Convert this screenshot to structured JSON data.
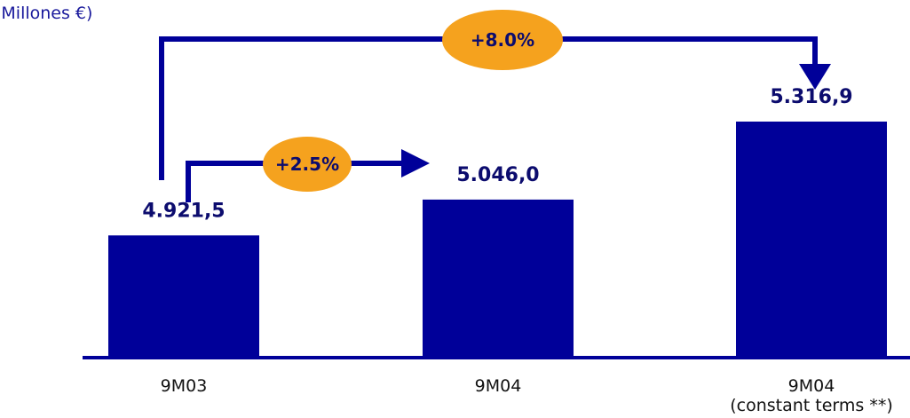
{
  "unit_label": "(Millones €)",
  "colors": {
    "bar": "#000099",
    "arrow": "#000099",
    "bubble": "#f5a21e",
    "axis": "#000099"
  },
  "chart_data": {
    "type": "bar",
    "title": "",
    "xlabel": "",
    "ylabel": "(Millones €)",
    "categories": [
      "9M03",
      "9M04",
      "9M04"
    ],
    "category_sublabels": [
      "",
      "",
      "(constant terms **)"
    ],
    "values": [
      4921.5,
      5046.0,
      5316.9
    ],
    "value_labels": [
      "4.921,5",
      "5.046,0",
      "5.316,9"
    ],
    "annotations": [
      {
        "text": "+2.5%",
        "from": 0,
        "to": 1
      },
      {
        "text": "+8.0%",
        "from": 0,
        "to": 2
      }
    ],
    "ylim": [
      4500,
      5450
    ],
    "grid": false,
    "legend": "none"
  }
}
